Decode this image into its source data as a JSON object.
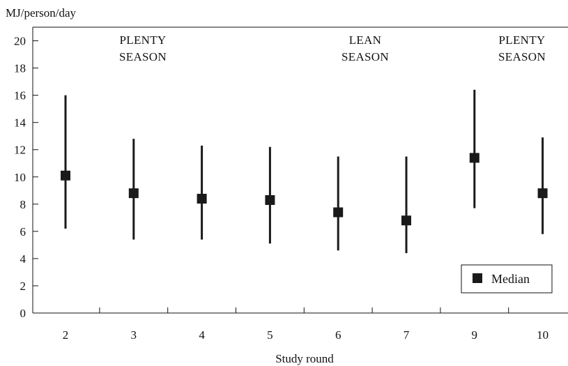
{
  "chart_data": {
    "type": "errorbar",
    "ylabel": "MJ/person/day",
    "xlabel": "Study round",
    "categories": [
      "2",
      "3",
      "4",
      "5",
      "6",
      "7",
      "9",
      "10"
    ],
    "ylim": [
      0,
      21
    ],
    "yticks": [
      0,
      2,
      4,
      6,
      8,
      10,
      12,
      14,
      16,
      18,
      20
    ],
    "series": [
      {
        "name": "Median",
        "median": [
          10.1,
          8.8,
          8.4,
          8.3,
          7.4,
          6.8,
          11.4,
          8.8
        ],
        "low": [
          6.2,
          5.4,
          5.4,
          5.1,
          4.6,
          4.4,
          7.7,
          5.8
        ],
        "high": [
          16.0,
          12.8,
          12.3,
          12.2,
          11.5,
          11.5,
          16.4,
          12.9
        ]
      }
    ],
    "annotations": [
      {
        "lines": [
          "PLENTY",
          "SEASON"
        ],
        "anchor": "3"
      },
      {
        "lines": [
          "LEAN",
          "SEASON"
        ],
        "anchor": "6.4"
      },
      {
        "lines": [
          "PLENTY",
          "SEASON"
        ],
        "anchor": "10"
      }
    ],
    "legend": {
      "position": "bottom-right",
      "entries": [
        "Median"
      ]
    },
    "grid": false,
    "colors": {
      "marker": "#1a1a1a",
      "line": "#1a1a1a",
      "axis": "#111111"
    }
  }
}
